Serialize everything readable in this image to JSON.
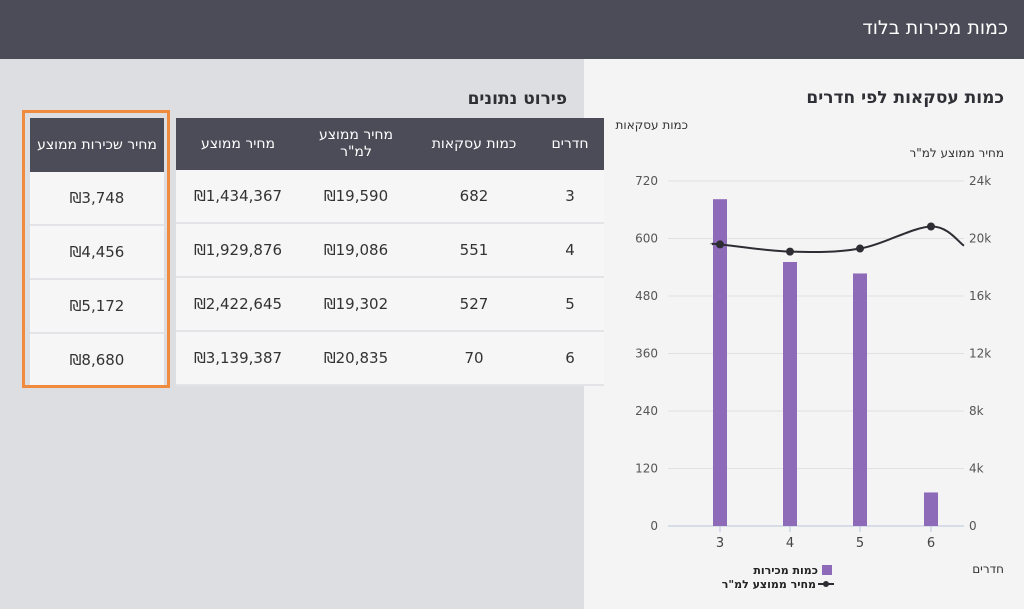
{
  "header": {
    "title": "כמות מכירות בלוד"
  },
  "table": {
    "title": "פירוט נתונים",
    "headers": [
      "חדרים",
      "כמות עסקאות",
      "מחיר ממוצע למ\"ר",
      "מחיר ממוצע"
    ],
    "rows": [
      [
        "3",
        "682",
        "₪19,590",
        "₪1,434,367"
      ],
      [
        "4",
        "551",
        "₪19,086",
        "₪1,929,876"
      ],
      [
        "5",
        "527",
        "₪19,302",
        "₪2,422,645"
      ],
      [
        "6",
        "70",
        "₪20,835",
        "₪3,139,387"
      ]
    ]
  },
  "rent_table": {
    "header": "מחיר שכירות ממוצע",
    "values": [
      "₪3,748",
      "₪4,456",
      "₪5,172",
      "₪8,680"
    ]
  },
  "highlight_color": "#f08a3c",
  "chart_data": {
    "type": "bar",
    "title": "כמות עסקאות לפי חדרים",
    "xlabel": "חדרים",
    "ylabel": "כמות עסקאות",
    "y2label": "מחיר ממוצע למ\"ר",
    "categories": [
      "3",
      "4",
      "5",
      "6"
    ],
    "ylim": [
      0,
      720
    ],
    "yticks": [
      "0",
      "120",
      "240",
      "360",
      "480",
      "600",
      "720"
    ],
    "y2lim": [
      0,
      24000
    ],
    "y2ticks": [
      "0",
      "4k",
      "8k",
      "12k",
      "16k",
      "20k",
      "24k"
    ],
    "grid": true,
    "legend_position": "bottom",
    "series": [
      {
        "name": "כמות מכירות",
        "type": "bar",
        "axis": "left",
        "color": "#8e6bb8",
        "values": [
          682,
          551,
          527,
          70
        ]
      },
      {
        "name": "מחיר ממוצע למ\"ר",
        "type": "line",
        "axis": "right",
        "color": "#2d2d33",
        "values": [
          19590,
          19086,
          19302,
          20835
        ]
      }
    ]
  }
}
